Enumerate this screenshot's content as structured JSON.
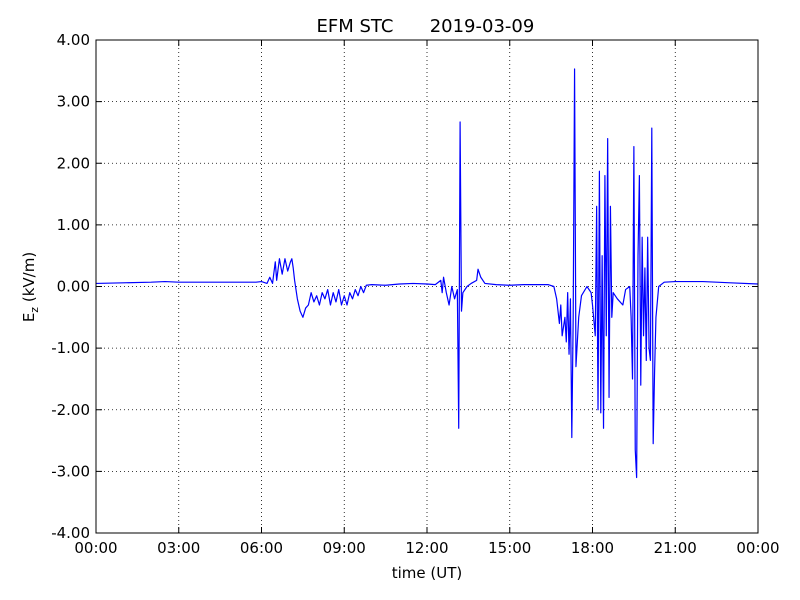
{
  "chart_data": {
    "type": "line",
    "title": "EFM STC",
    "subtitle": "2019-03-09",
    "xlabel": "time (UT)",
    "ylabel": [
      "E",
      "z",
      " (kV/m)"
    ],
    "xlim": [
      0,
      24
    ],
    "xticks": [
      {
        "value": 0,
        "label": "00:00"
      },
      {
        "value": 3,
        "label": "03:00"
      },
      {
        "value": 6,
        "label": "06:00"
      },
      {
        "value": 9,
        "label": "09:00"
      },
      {
        "value": 12,
        "label": "12:00"
      },
      {
        "value": 15,
        "label": "15:00"
      },
      {
        "value": 18,
        "label": "18:00"
      },
      {
        "value": 21,
        "label": "21:00"
      },
      {
        "value": 24,
        "label": "00:00"
      }
    ],
    "ylim": [
      -4,
      4
    ],
    "yticks": [
      {
        "value": -4,
        "label": "-4.00"
      },
      {
        "value": -3,
        "label": "-3.00"
      },
      {
        "value": -2,
        "label": "-2.00"
      },
      {
        "value": -1,
        "label": "-1.00"
      },
      {
        "value": 0,
        "label": "0.00"
      },
      {
        "value": 1,
        "label": "1.00"
      },
      {
        "value": 2,
        "label": "2.00"
      },
      {
        "value": 3,
        "label": "3.00"
      },
      {
        "value": 4,
        "label": "4.00"
      }
    ],
    "grid": true,
    "x": [
      0,
      1,
      2,
      2.5,
      3,
      4,
      5,
      5.8,
      6.0,
      6.2,
      6.3,
      6.4,
      6.5,
      6.55,
      6.65,
      6.75,
      6.85,
      6.95,
      7.05,
      7.1,
      7.15,
      7.2,
      7.3,
      7.4,
      7.5,
      7.6,
      7.7,
      7.8,
      7.9,
      8.0,
      8.1,
      8.2,
      8.3,
      8.4,
      8.5,
      8.6,
      8.7,
      8.8,
      8.9,
      9.0,
      9.1,
      9.2,
      9.3,
      9.4,
      9.5,
      9.6,
      9.7,
      9.8,
      10,
      10.5,
      11,
      11.5,
      12,
      12.3,
      12.5,
      12.55,
      12.6,
      12.7,
      12.8,
      12.9,
      13.0,
      13.1,
      13.15,
      13.2,
      13.25,
      13.3,
      13.45,
      13.6,
      13.8,
      13.85,
      13.95,
      14.1,
      14.5,
      15,
      15.5,
      16,
      16.4,
      16.6,
      16.7,
      16.8,
      16.85,
      16.9,
      17.0,
      17.05,
      17.1,
      17.15,
      17.2,
      17.25,
      17.3,
      17.35,
      17.4,
      17.5,
      17.6,
      17.8,
      17.95,
      18.0,
      18.1,
      18.15,
      18.2,
      18.25,
      18.3,
      18.35,
      18.4,
      18.45,
      18.5,
      18.55,
      18.6,
      18.65,
      18.7,
      18.75,
      18.9,
      19.1,
      19.2,
      19.35,
      19.4,
      19.45,
      19.5,
      19.55,
      19.6,
      19.65,
      19.7,
      19.75,
      19.8,
      19.85,
      19.9,
      19.95,
      20.0,
      20.05,
      20.1,
      20.15,
      20.2,
      20.25,
      20.3,
      20.4,
      20.6,
      21,
      22,
      23,
      24
    ],
    "series": [
      {
        "color": "#0000ff",
        "values": [
          0.05,
          0.06,
          0.07,
          0.08,
          0.07,
          0.07,
          0.07,
          0.07,
          0.08,
          0.05,
          0.15,
          0.05,
          0.4,
          0.1,
          0.45,
          0.2,
          0.45,
          0.25,
          0.4,
          0.45,
          0.3,
          0.1,
          -0.2,
          -0.4,
          -0.5,
          -0.35,
          -0.3,
          -0.1,
          -0.25,
          -0.15,
          -0.3,
          -0.1,
          -0.2,
          -0.05,
          -0.3,
          -0.1,
          -0.25,
          -0.05,
          -0.3,
          -0.15,
          -0.3,
          -0.1,
          -0.2,
          -0.05,
          -0.15,
          0.0,
          -0.1,
          0.02,
          0.03,
          0.02,
          0.04,
          0.05,
          0.04,
          0.03,
          0.1,
          -0.1,
          0.15,
          -0.1,
          -0.3,
          0.0,
          -0.2,
          -0.05,
          -2.3,
          2.67,
          -0.4,
          -0.1,
          0.0,
          0.05,
          0.1,
          0.28,
          0.15,
          0.05,
          0.03,
          0.02,
          0.03,
          0.03,
          0.03,
          0.0,
          -0.2,
          -0.6,
          -0.3,
          -0.8,
          -0.5,
          -0.9,
          -0.1,
          -1.1,
          -0.2,
          -2.45,
          -0.5,
          3.53,
          -1.3,
          -0.5,
          -0.15,
          0.0,
          -0.1,
          -0.3,
          -0.8,
          1.3,
          -2.0,
          1.87,
          -2.05,
          0.5,
          -2.3,
          1.8,
          -0.8,
          2.4,
          -1.8,
          1.3,
          -0.5,
          -0.1,
          -0.2,
          -0.3,
          -0.05,
          0.0,
          -0.5,
          -1.5,
          2.27,
          -2.65,
          -3.1,
          0.5,
          1.8,
          -1.6,
          0.8,
          -0.8,
          0.3,
          -1.2,
          0.8,
          -1.0,
          -1.2,
          2.57,
          -2.55,
          -1.4,
          -0.5,
          0.0,
          0.07,
          0.08,
          0.08,
          0.06,
          0.04
        ]
      }
    ]
  }
}
